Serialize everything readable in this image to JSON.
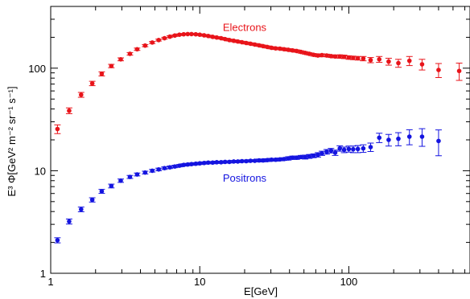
{
  "chart_data": {
    "type": "scatter",
    "title": "",
    "xlabel": "E[GeV]",
    "ylabel": "E³ Φ[GeV² m⁻² sr⁻¹ s⁻¹]",
    "xscale": "log",
    "yscale": "log",
    "xlim": [
      1,
      650
    ],
    "ylim": [
      1,
      400
    ],
    "grid": false,
    "x_ticks": [
      {
        "value": 1,
        "label": "1"
      },
      {
        "value": 10,
        "label": "10"
      },
      {
        "value": 100,
        "label": "100"
      }
    ],
    "y_ticks": [
      {
        "value": 1,
        "label": "1"
      },
      {
        "value": 10,
        "label": "10"
      },
      {
        "value": 100,
        "label": "100"
      }
    ],
    "series": [
      {
        "name": "Electrons",
        "color": "#e8141a",
        "label_at": [
          20,
          230
        ],
        "points": [
          [
            1.11,
            25.5,
            2.5
          ],
          [
            1.33,
            38.5,
            2.5
          ],
          [
            1.6,
            55,
            3
          ],
          [
            1.9,
            71,
            3.5
          ],
          [
            2.2,
            88,
            4
          ],
          [
            2.55,
            105,
            4
          ],
          [
            2.95,
            122,
            4
          ],
          [
            3.4,
            138,
            4
          ],
          [
            3.8,
            153,
            4
          ],
          [
            4.3,
            166,
            4
          ],
          [
            4.8,
            178,
            4
          ],
          [
            5.3,
            188,
            4
          ],
          [
            5.8,
            196,
            4
          ],
          [
            6.3,
            203,
            4
          ],
          [
            6.8,
            208,
            4
          ],
          [
            7.3,
            212,
            4
          ],
          [
            7.8,
            214,
            4
          ],
          [
            8.3,
            215,
            4
          ],
          [
            8.8,
            215,
            4
          ],
          [
            9.4,
            214,
            4
          ],
          [
            10,
            212,
            4
          ],
          [
            10.7,
            209,
            4
          ],
          [
            11.4,
            206,
            4
          ],
          [
            12.2,
            202,
            4
          ],
          [
            13,
            199,
            4
          ],
          [
            13.9,
            196,
            4
          ],
          [
            14.8,
            192,
            4
          ],
          [
            15.8,
            188,
            4
          ],
          [
            16.9,
            185,
            4
          ],
          [
            18,
            182,
            4
          ],
          [
            19.2,
            179,
            4
          ],
          [
            20.5,
            176,
            4
          ],
          [
            21.9,
            173,
            4
          ],
          [
            23.4,
            170,
            4
          ],
          [
            25,
            167,
            4
          ],
          [
            26.6,
            164,
            4
          ],
          [
            28.4,
            161,
            4
          ],
          [
            30.3,
            158,
            4
          ],
          [
            32.3,
            156,
            4
          ],
          [
            34.5,
            155,
            4
          ],
          [
            36.8,
            153,
            4
          ],
          [
            39.3,
            151,
            4
          ],
          [
            41.9,
            149,
            4
          ],
          [
            44.7,
            147,
            4
          ],
          [
            47.7,
            144,
            4
          ],
          [
            50.9,
            141,
            4
          ],
          [
            54.3,
            138,
            4
          ],
          [
            58,
            135,
            4
          ],
          [
            62,
            133,
            4
          ],
          [
            66,
            134,
            4
          ],
          [
            71,
            133,
            4
          ],
          [
            76,
            131,
            4
          ],
          [
            81,
            130,
            4
          ],
          [
            87,
            130,
            5
          ],
          [
            93,
            129,
            5
          ],
          [
            100,
            127,
            5
          ],
          [
            107,
            126,
            5
          ],
          [
            115,
            125,
            5
          ],
          [
            125,
            124,
            6
          ],
          [
            140,
            120,
            7
          ],
          [
            160,
            122,
            8
          ],
          [
            185,
            116,
            9
          ],
          [
            215,
            112,
            10
          ],
          [
            255,
            118,
            12
          ],
          [
            310,
            109,
            13
          ],
          [
            400,
            96,
            15
          ],
          [
            550,
            94,
            18
          ]
        ]
      },
      {
        "name": "Positrons",
        "color": "#1414e0",
        "label_at": [
          20,
          7.8
        ],
        "points": [
          [
            1.11,
            2.1,
            0.12
          ],
          [
            1.33,
            3.2,
            0.18
          ],
          [
            1.6,
            4.2,
            0.22
          ],
          [
            1.9,
            5.2,
            0.25
          ],
          [
            2.2,
            6.3,
            0.28
          ],
          [
            2.55,
            7.1,
            0.3
          ],
          [
            2.95,
            8.0,
            0.3
          ],
          [
            3.4,
            8.7,
            0.3
          ],
          [
            3.8,
            9.2,
            0.3
          ],
          [
            4.3,
            9.6,
            0.3
          ],
          [
            4.8,
            10.0,
            0.3
          ],
          [
            5.3,
            10.3,
            0.3
          ],
          [
            5.8,
            10.6,
            0.3
          ],
          [
            6.3,
            10.8,
            0.3
          ],
          [
            6.8,
            11.0,
            0.3
          ],
          [
            7.3,
            11.2,
            0.3
          ],
          [
            7.8,
            11.4,
            0.3
          ],
          [
            8.3,
            11.5,
            0.3
          ],
          [
            8.8,
            11.6,
            0.3
          ],
          [
            9.4,
            11.7,
            0.3
          ],
          [
            10,
            11.8,
            0.3
          ],
          [
            10.7,
            11.9,
            0.3
          ],
          [
            11.4,
            12.0,
            0.3
          ],
          [
            12.2,
            12.0,
            0.3
          ],
          [
            13,
            12.1,
            0.3
          ],
          [
            13.9,
            12.1,
            0.3
          ],
          [
            14.8,
            12.2,
            0.3
          ],
          [
            15.8,
            12.2,
            0.3
          ],
          [
            16.9,
            12.3,
            0.3
          ],
          [
            18,
            12.3,
            0.3
          ],
          [
            19.2,
            12.4,
            0.3
          ],
          [
            20.5,
            12.4,
            0.3
          ],
          [
            21.9,
            12.5,
            0.3
          ],
          [
            23.4,
            12.5,
            0.3
          ],
          [
            25,
            12.6,
            0.4
          ],
          [
            26.6,
            12.6,
            0.4
          ],
          [
            28.4,
            12.7,
            0.4
          ],
          [
            30.3,
            12.8,
            0.4
          ],
          [
            32.3,
            12.8,
            0.4
          ],
          [
            34.5,
            12.9,
            0.4
          ],
          [
            36.8,
            13.0,
            0.4
          ],
          [
            39.3,
            13.2,
            0.5
          ],
          [
            41.9,
            13.4,
            0.5
          ],
          [
            44.7,
            13.4,
            0.5
          ],
          [
            47.7,
            13.6,
            0.5
          ],
          [
            50.9,
            13.6,
            0.6
          ],
          [
            54.3,
            13.8,
            0.6
          ],
          [
            58,
            14.0,
            0.6
          ],
          [
            62,
            14.3,
            0.7
          ],
          [
            66,
            14.8,
            0.7
          ],
          [
            71,
            15.3,
            0.8
          ],
          [
            76,
            15.7,
            0.8
          ],
          [
            81,
            15.0,
            0.9
          ],
          [
            87,
            16.5,
            1.0
          ],
          [
            93,
            16.0,
            1.0
          ],
          [
            100,
            16.3,
            1.1
          ],
          [
            107,
            16.2,
            1.2
          ],
          [
            115,
            16.3,
            1.3
          ],
          [
            125,
            16.5,
            1.4
          ],
          [
            140,
            17.0,
            1.6
          ],
          [
            160,
            21.0,
            2.2
          ],
          [
            185,
            20.0,
            2.6
          ],
          [
            215,
            20.5,
            3.0
          ],
          [
            255,
            21.5,
            3.6
          ],
          [
            310,
            21.5,
            4.2
          ],
          [
            400,
            19.5,
            5.5
          ]
        ]
      }
    ]
  }
}
